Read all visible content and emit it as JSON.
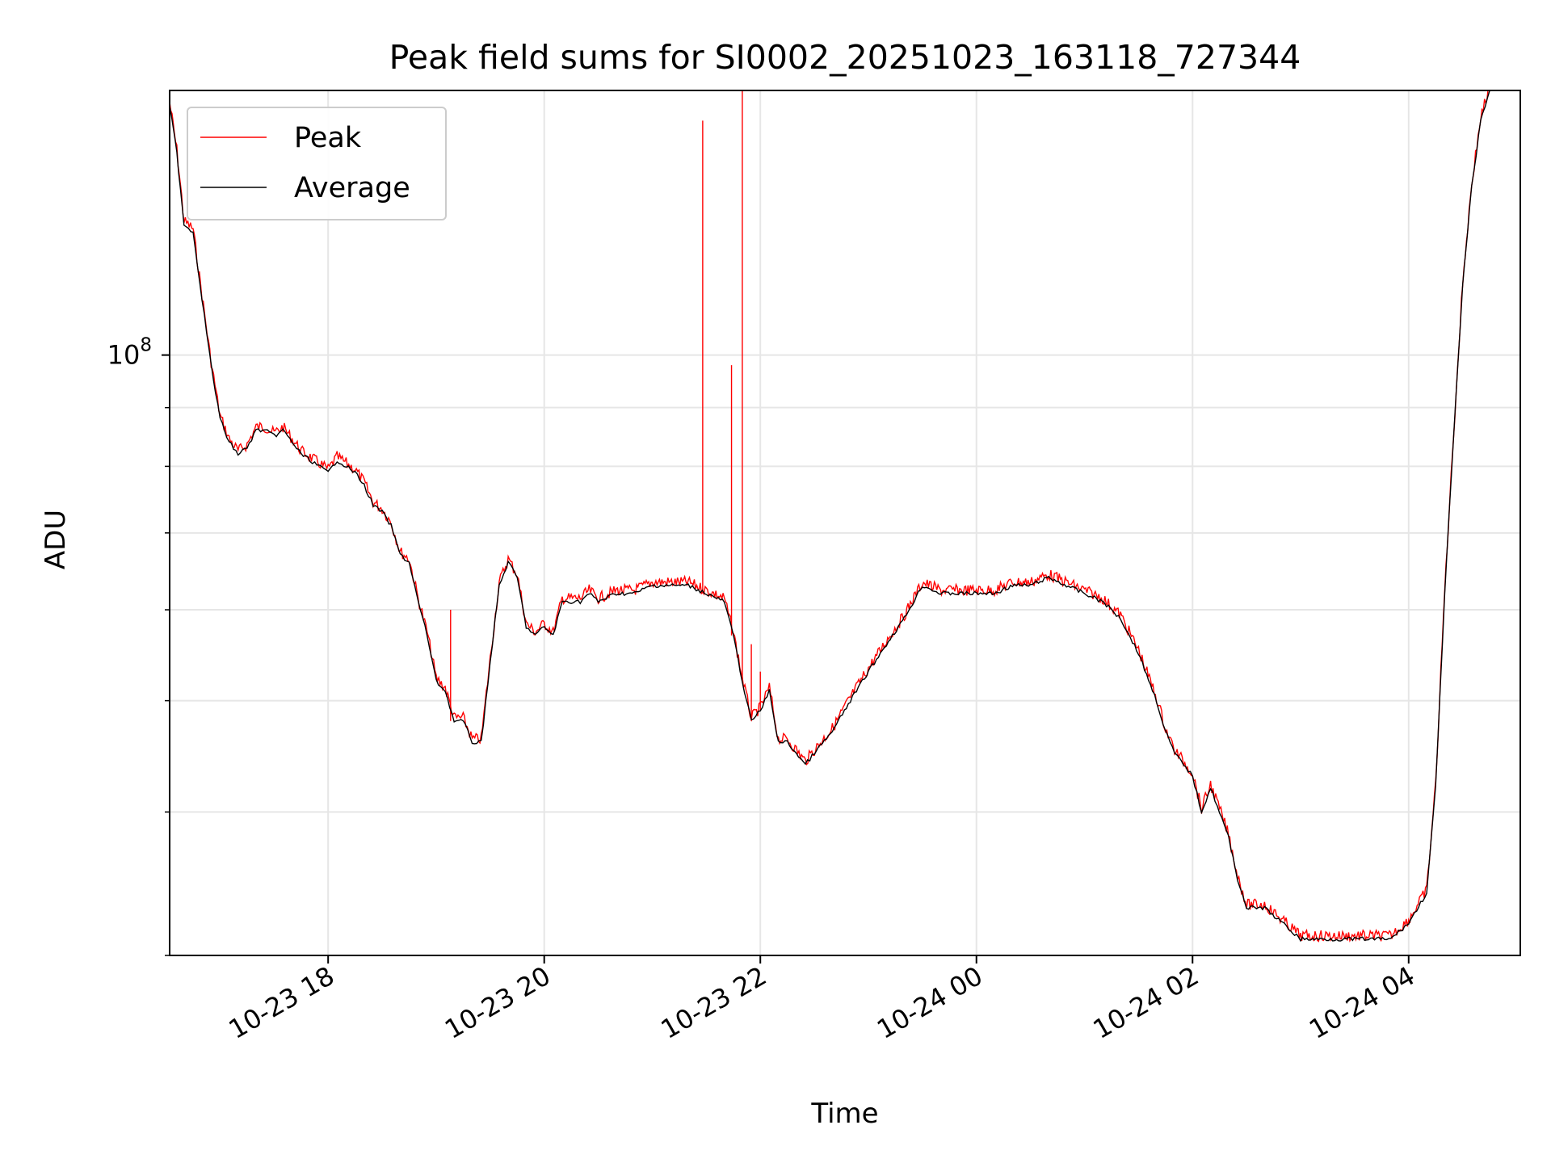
{
  "chart_data": {
    "type": "line",
    "title": "Peak field sums for SI0002_20251023_163118_727344",
    "xlabel": "Time",
    "ylabel": "ADU",
    "y_scale": "log",
    "y_tick_labels": [
      "10^8"
    ],
    "x_tick_labels": [
      "10-23 18",
      "10-23 20",
      "10-23 22",
      "10-24 00",
      "10-24 02",
      "10-24 04"
    ],
    "x_tick_values": [
      "2025-10-23 18:00",
      "2025-10-23 20:00",
      "2025-10-23 22:00",
      "2025-10-24 00:00",
      "2025-10-24 02:00",
      "2025-10-24 04:00"
    ],
    "xlim": [
      "2025-10-23 16:32",
      "2025-10-24 05:02"
    ],
    "ylim": [
      30000000,
      170000000
    ],
    "grid": true,
    "legend_position": "upper-left",
    "series": [
      {
        "name": "Peak",
        "color": "#ff0000"
      },
      {
        "name": "Average",
        "color": "#000000"
      }
    ],
    "average_points": [
      [
        "2025-10-23 16:32",
        165000000
      ],
      [
        "2025-10-23 16:36",
        150000000
      ],
      [
        "2025-10-23 16:40",
        130000000
      ],
      [
        "2025-10-23 16:45",
        128000000
      ],
      [
        "2025-10-23 16:50",
        112000000
      ],
      [
        "2025-10-23 16:55",
        98000000
      ],
      [
        "2025-10-23 17:00",
        88000000
      ],
      [
        "2025-10-23 17:05",
        84000000
      ],
      [
        "2025-10-23 17:10",
        82000000
      ],
      [
        "2025-10-23 17:15",
        83000000
      ],
      [
        "2025-10-23 17:20",
        86000000
      ],
      [
        "2025-10-23 17:25",
        86000000
      ],
      [
        "2025-10-23 17:30",
        85000000
      ],
      [
        "2025-10-23 17:35",
        86000000
      ],
      [
        "2025-10-23 17:40",
        84000000
      ],
      [
        "2025-10-23 17:45",
        82000000
      ],
      [
        "2025-10-23 17:50",
        81000000
      ],
      [
        "2025-10-23 17:55",
        80000000
      ],
      [
        "2025-10-23 18:00",
        79000000
      ],
      [
        "2025-10-23 18:05",
        81000000
      ],
      [
        "2025-10-23 18:10",
        80000000
      ],
      [
        "2025-10-23 18:15",
        79000000
      ],
      [
        "2025-10-23 18:20",
        77000000
      ],
      [
        "2025-10-23 18:25",
        74000000
      ],
      [
        "2025-10-23 18:30",
        73000000
      ],
      [
        "2025-10-23 18:35",
        71000000
      ],
      [
        "2025-10-23 18:40",
        67000000
      ],
      [
        "2025-10-23 18:45",
        66000000
      ],
      [
        "2025-10-23 18:50",
        61000000
      ],
      [
        "2025-10-23 18:55",
        57000000
      ],
      [
        "2025-10-23 19:00",
        52000000
      ],
      [
        "2025-10-23 19:05",
        51000000
      ],
      [
        "2025-10-23 19:10",
        48000000
      ],
      [
        "2025-10-23 19:15",
        48000000
      ],
      [
        "2025-10-23 19:20",
        46000000
      ],
      [
        "2025-10-23 19:25",
        46000000
      ],
      [
        "2025-10-23 19:30",
        54000000
      ],
      [
        "2025-10-23 19:35",
        63000000
      ],
      [
        "2025-10-23 19:40",
        66000000
      ],
      [
        "2025-10-23 19:45",
        64000000
      ],
      [
        "2025-10-23 19:50",
        58000000
      ],
      [
        "2025-10-23 19:55",
        57000000
      ],
      [
        "2025-10-23 20:00",
        58000000
      ],
      [
        "2025-10-23 20:05",
        57000000
      ],
      [
        "2025-10-23 20:10",
        61000000
      ],
      [
        "2025-10-23 20:15",
        61000000
      ],
      [
        "2025-10-23 20:20",
        61000000
      ],
      [
        "2025-10-23 20:25",
        62000000
      ],
      [
        "2025-10-23 20:30",
        61000000
      ],
      [
        "2025-10-23 20:40",
        62000000
      ],
      [
        "2025-10-23 20:50",
        62000000
      ],
      [
        "2025-10-23 21:00",
        63000000
      ],
      [
        "2025-10-23 21:10",
        63000000
      ],
      [
        "2025-10-23 21:20",
        63000000
      ],
      [
        "2025-10-23 21:30",
        62000000
      ],
      [
        "2025-10-23 21:40",
        61000000
      ],
      [
        "2025-10-23 21:45",
        57000000
      ],
      [
        "2025-10-23 21:50",
        52000000
      ],
      [
        "2025-10-23 21:55",
        48000000
      ],
      [
        "2025-10-23 22:00",
        49000000
      ],
      [
        "2025-10-23 22:05",
        51000000
      ],
      [
        "2025-10-23 22:10",
        46000000
      ],
      [
        "2025-10-23 22:15",
        46000000
      ],
      [
        "2025-10-23 22:20",
        45000000
      ],
      [
        "2025-10-23 22:25",
        44000000
      ],
      [
        "2025-10-23 22:30",
        45000000
      ],
      [
        "2025-10-23 22:40",
        47000000
      ],
      [
        "2025-10-23 22:50",
        50000000
      ],
      [
        "2025-10-23 23:00",
        53000000
      ],
      [
        "2025-10-23 23:10",
        56000000
      ],
      [
        "2025-10-23 23:20",
        59000000
      ],
      [
        "2025-10-23 23:30",
        63000000
      ],
      [
        "2025-10-23 23:40",
        62000000
      ],
      [
        "2025-10-23 23:50",
        62000000
      ],
      [
        "2025-10-24 00:00",
        62000000
      ],
      [
        "2025-10-24 00:10",
        62000000
      ],
      [
        "2025-10-24 00:20",
        63000000
      ],
      [
        "2025-10-24 00:30",
        63000000
      ],
      [
        "2025-10-24 00:40",
        64000000
      ],
      [
        "2025-10-24 00:50",
        63000000
      ],
      [
        "2025-10-24 01:00",
        62000000
      ],
      [
        "2025-10-24 01:10",
        61000000
      ],
      [
        "2025-10-24 01:20",
        59000000
      ],
      [
        "2025-10-24 01:30",
        55000000
      ],
      [
        "2025-10-24 01:40",
        50000000
      ],
      [
        "2025-10-24 01:45",
        47000000
      ],
      [
        "2025-10-24 01:50",
        45000000
      ],
      [
        "2025-10-24 01:55",
        44000000
      ],
      [
        "2025-10-24 02:00",
        43000000
      ],
      [
        "2025-10-24 02:05",
        40000000
      ],
      [
        "2025-10-24 02:10",
        42000000
      ],
      [
        "2025-10-24 02:15",
        40000000
      ],
      [
        "2025-10-24 02:20",
        38000000
      ],
      [
        "2025-10-24 02:25",
        35000000
      ],
      [
        "2025-10-24 02:30",
        33000000
      ],
      [
        "2025-10-24 02:40",
        33000000
      ],
      [
        "2025-10-24 02:50",
        32000000
      ],
      [
        "2025-10-24 03:00",
        31000000
      ],
      [
        "2025-10-24 03:10",
        31000000
      ],
      [
        "2025-10-24 03:20",
        31000000
      ],
      [
        "2025-10-24 03:30",
        31000000
      ],
      [
        "2025-10-24 03:40",
        31000000
      ],
      [
        "2025-10-24 03:50",
        31000000
      ],
      [
        "2025-10-24 04:00",
        32000000
      ],
      [
        "2025-10-24 04:10",
        34000000
      ],
      [
        "2025-10-24 04:15",
        42000000
      ],
      [
        "2025-10-24 04:20",
        62000000
      ],
      [
        "2025-10-24 04:25",
        85000000
      ],
      [
        "2025-10-24 04:30",
        115000000
      ],
      [
        "2025-10-24 04:35",
        140000000
      ],
      [
        "2025-10-24 04:40",
        160000000
      ],
      [
        "2025-10-24 04:45",
        170000000
      ]
    ],
    "peak_spikes": [
      [
        "2025-10-23 19:08",
        60000000
      ],
      [
        "2025-10-23 21:28",
        160000000
      ],
      [
        "2025-10-23 21:44",
        98000000
      ],
      [
        "2025-10-23 21:50",
        170000000
      ],
      [
        "2025-10-23 21:55",
        56000000
      ],
      [
        "2025-10-23 22:00",
        53000000
      ]
    ]
  }
}
